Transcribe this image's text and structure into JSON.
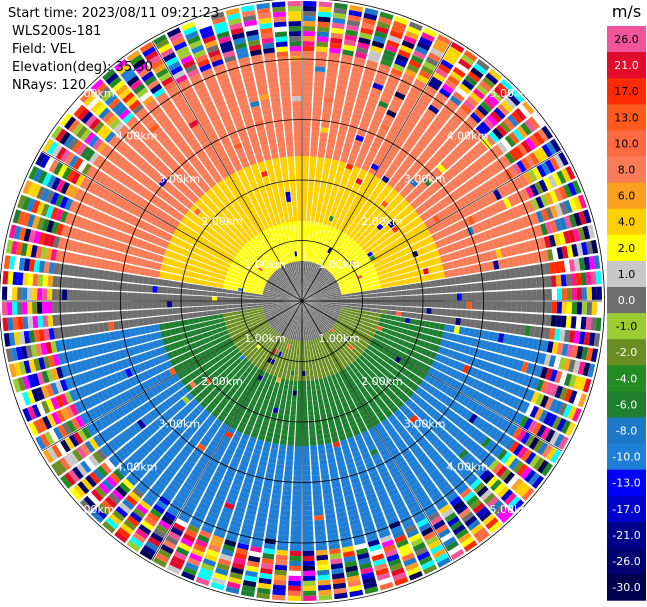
{
  "header": {
    "start_time": "Start time: 2023/08/11 09:21:23",
    "instrument": "WLS200s-181",
    "field": "Field: VEL",
    "elevation": "Elevation(deg): 35.30",
    "nrays": "NRays: 120"
  },
  "chart_data": {
    "type": "ppi",
    "range_rings_km": [
      1.0,
      2.0,
      3.0,
      4.0,
      5.0
    ],
    "ring_labels": [
      "1.00km",
      "2.00km",
      "3.00km",
      "4.00km",
      "5.00km"
    ],
    "nrays": 120,
    "colorbar": {
      "unit": "m/s",
      "ticks": [
        "26.0",
        "21.0",
        "17.0",
        "13.0",
        "10.0",
        "8.0",
        "6.0",
        "4.0",
        "2.0",
        "1.0",
        "0.0",
        "-1.0",
        "-2.0",
        "-4.0",
        "-6.0",
        "-8.0",
        "-10.0",
        "-13.0",
        "-17.0",
        "-21.0",
        "-26.0",
        "-30.0"
      ],
      "colors": [
        "#f0549a",
        "#e30a2a",
        "#ff2a00",
        "#ff5a1e",
        "#ff6a40",
        "#f87c58",
        "#fda020",
        "#ffd000",
        "#ffff00",
        "#c8c8c8",
        "#6e6e6e",
        "#9acd32",
        "#6b8e23",
        "#228b22",
        "#1e7f2e",
        "#1e78c8",
        "#1f7fd6",
        "#0000ff",
        "#0000cd",
        "#00008b",
        "#000070",
        "#000050"
      ]
    },
    "velocity_field_description_rows": [
      {
        "range_km": [
          0.0,
          0.6
        ],
        "value": 0.0
      },
      {
        "north_band_km": [
          0.6,
          1.4
        ],
        "value": 4.0
      },
      {
        "north_band_km": [
          1.4,
          2.4
        ],
        "value": 6.0
      },
      {
        "north_band_km": [
          2.4,
          4.0
        ],
        "value": 8.0
      },
      {
        "south_band_km": [
          0.6,
          1.4
        ],
        "value": -2.0
      },
      {
        "south_band_km": [
          1.4,
          2.4
        ],
        "value": -4.0
      },
      {
        "south_band_km": [
          2.4,
          4.0
        ],
        "value": -8.0
      }
    ]
  }
}
